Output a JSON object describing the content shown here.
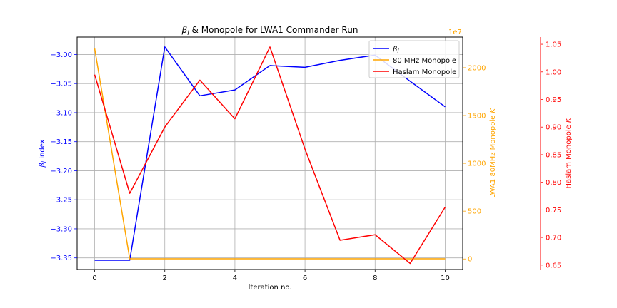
{
  "chart_data": {
    "type": "line",
    "title": "β_l & Monopole for LWA1 Commander Run",
    "title_parts": {
      "symbol": "β",
      "subscript": "l",
      "rest": " & Monopole for LWA1 Commander Run"
    },
    "xlabel": "Iteration no.",
    "x": [
      0,
      1,
      2,
      3,
      4,
      5,
      6,
      7,
      8,
      9,
      10
    ],
    "xlim": [
      -0.5,
      10.5
    ],
    "xticks": [
      0,
      2,
      4,
      6,
      8,
      10
    ],
    "grid": true,
    "legend": {
      "placement": "top-right"
    },
    "axes": {
      "left": {
        "label": "β_l index",
        "label_parts": {
          "symbol": "β",
          "subscript": "l",
          "rest": " index"
        },
        "color": "#0000ff",
        "ylim": [
          -3.37,
          -2.97
        ],
        "ticks": [
          -3.35,
          -3.3,
          -3.25,
          -3.2,
          -3.15,
          -3.1,
          -3.05,
          -3.0
        ],
        "tick_labels": [
          "−3.35",
          "−3.30",
          "−3.25",
          "−3.20",
          "−3.15",
          "−3.10",
          "−3.05",
          "−3.00"
        ]
      },
      "right1": {
        "label": "LWA1 80MHz Monopole K",
        "label_parts": {
          "text": "LWA1 80MHz Monopole ",
          "symbol": "K"
        },
        "color": "#ffa500",
        "ylim": [
          -110,
          2320
        ],
        "ticks": [
          0,
          500,
          1000,
          1500,
          2000
        ],
        "tick_labels": [
          "0",
          "500",
          "1000",
          "1500",
          "2000"
        ],
        "offset_label": "1e7"
      },
      "right2": {
        "label": "Haslam Monopole K",
        "label_parts": {
          "text": "Haslam Monopole ",
          "symbol": "K"
        },
        "color": "#ff0000",
        "ylim": [
          0.642,
          1.063
        ],
        "ticks": [
          0.65,
          0.7,
          0.75,
          0.8,
          0.85,
          0.9,
          0.95,
          1.0,
          1.05
        ],
        "tick_labels": [
          "0.65",
          "0.70",
          "0.75",
          "0.80",
          "0.85",
          "0.90",
          "0.95",
          "1.00",
          "1.05"
        ]
      }
    },
    "series": [
      {
        "name": "β_l",
        "legend_parts": {
          "symbol": "β",
          "subscript": "l"
        },
        "axis": "left",
        "color": "#0000ff",
        "values": [
          -3.354,
          -3.354,
          -2.987,
          -3.071,
          -3.061,
          -3.019,
          -3.022,
          -3.01,
          -3.001,
          -3.046,
          -3.09
        ]
      },
      {
        "name": "80 MHz Monopole",
        "axis": "right1",
        "color": "#ffa500",
        "values": [
          2200,
          2,
          2,
          2,
          2,
          2,
          2,
          2,
          2,
          2,
          2
        ]
      },
      {
        "name": "Haslam Monopole",
        "axis": "right2",
        "color": "#ff0000",
        "values": [
          0.995,
          0.78,
          0.9,
          0.985,
          0.915,
          1.045,
          0.86,
          0.695,
          0.705,
          0.653,
          0.755
        ]
      }
    ]
  }
}
